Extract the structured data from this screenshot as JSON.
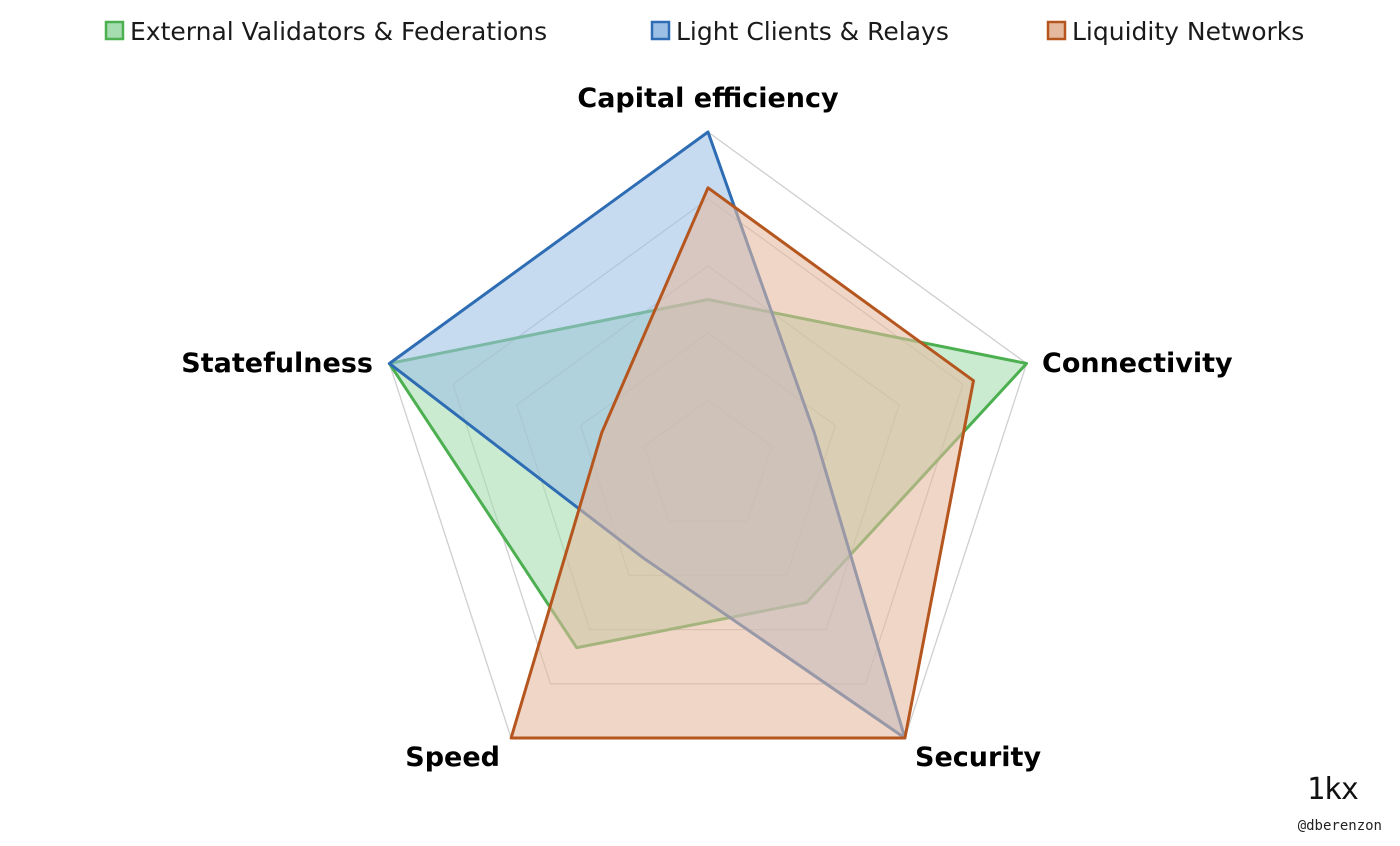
{
  "chart_data": {
    "type": "radar",
    "title": "",
    "axes": [
      "Capital efficiency",
      "Connectivity",
      "Security",
      "Speed",
      "Statefulness"
    ],
    "range": [
      0,
      6
    ],
    "grid_levels": 5,
    "grid": true,
    "legend_placement": "top",
    "series": [
      {
        "name": "External Validators & Federations",
        "values": [
          3,
          6,
          3,
          4,
          6
        ],
        "color": "#4caf50",
        "fill": "#a5dcb0"
      },
      {
        "name": "Light Clients & Relays",
        "values": [
          6,
          2,
          6,
          2,
          6
        ],
        "color": "#2e6db4",
        "fill": "#9cbfe6"
      },
      {
        "name": "Liquidity Networks",
        "values": [
          5,
          5,
          6,
          6,
          2
        ],
        "color": "#b5561f",
        "fill": "#e5b99e"
      }
    ]
  },
  "brand": {
    "logo_text": "1kx",
    "credit": "@dberenzon"
  }
}
